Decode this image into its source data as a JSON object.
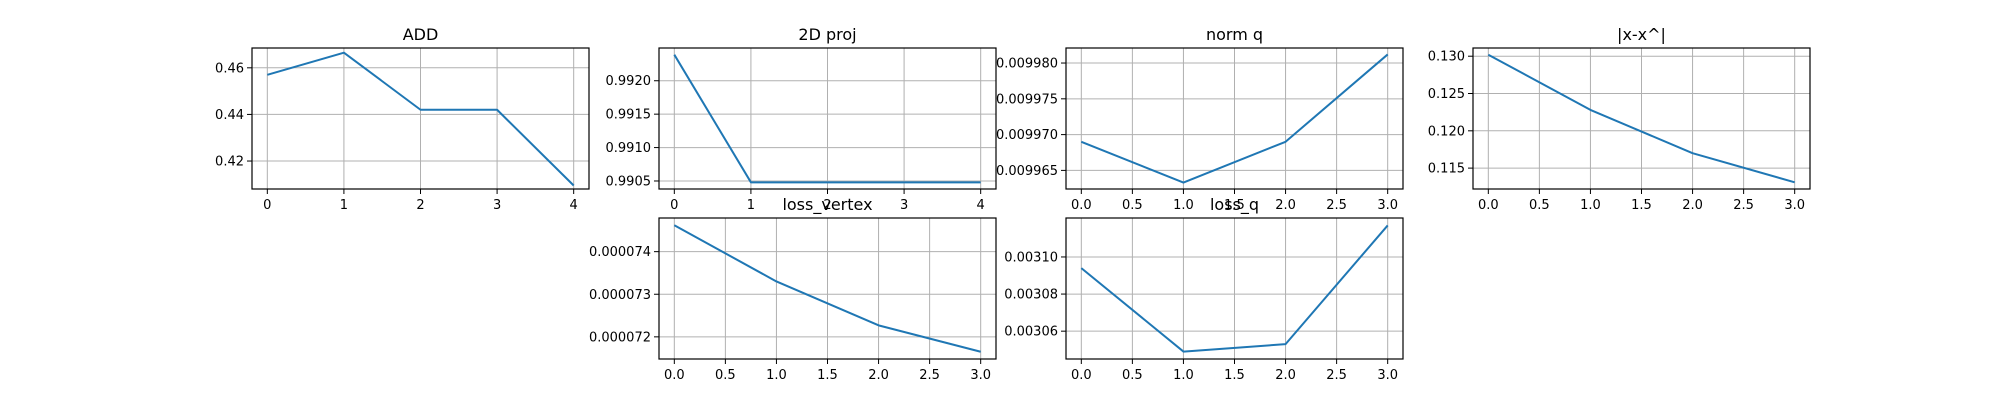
{
  "chart_data": [
    {
      "id": "add",
      "type": "line",
      "title": "ADD",
      "x": [
        0,
        1,
        2,
        3,
        4
      ],
      "series": [
        {
          "values": [
            0.457,
            0.4665,
            0.442,
            0.442,
            0.4095
          ]
        }
      ],
      "xlim": [
        -0.2,
        4.2
      ],
      "ylim": [
        0.408,
        0.4685
      ],
      "xticks": [
        0,
        1,
        2,
        3,
        4
      ],
      "xtick_labels": [
        "0",
        "1",
        "2",
        "3",
        "4"
      ],
      "yticks": [
        0.42,
        0.44,
        0.46
      ],
      "ytick_labels": [
        "0.42",
        "0.44",
        "0.46"
      ],
      "grid": true,
      "color": "#1f77b4"
    },
    {
      "id": "proj2d",
      "type": "line",
      "title": "2D proj",
      "x": [
        0,
        1,
        2,
        3,
        4
      ],
      "series": [
        {
          "values": [
            0.99239,
            0.99048,
            0.99048,
            0.99048,
            0.99048
          ]
        }
      ],
      "xlim": [
        -0.2,
        4.2
      ],
      "ylim": [
        0.99038,
        0.99249
      ],
      "xticks": [
        0,
        1,
        2,
        3,
        4
      ],
      "xtick_labels": [
        "0",
        "1",
        "2",
        "3",
        "4"
      ],
      "yticks": [
        0.9905,
        0.991,
        0.9915,
        0.992
      ],
      "ytick_labels": [
        "0.9905",
        "0.9910",
        "0.9915",
        "0.9920"
      ],
      "grid": true,
      "color": "#1f77b4"
    },
    {
      "id": "normq",
      "type": "line",
      "title": "norm q",
      "x": [
        0,
        1,
        2,
        3
      ],
      "series": [
        {
          "values": [
            0.009969,
            0.0099633,
            0.009969,
            0.0099812
          ]
        }
      ],
      "xlim": [
        -0.15,
        3.15
      ],
      "ylim": [
        0.0099624,
        0.0099821
      ],
      "xticks": [
        0,
        0.5,
        1,
        1.5,
        2,
        2.5,
        3
      ],
      "xtick_labels": [
        "0.0",
        "0.5",
        "1.0",
        "1.5",
        "2.0",
        "2.5",
        "3.0"
      ],
      "yticks": [
        0.009965,
        0.00997,
        0.009975,
        0.00998
      ],
      "ytick_labels": [
        "0.009965",
        "0.009970",
        "0.009975",
        "0.009980"
      ],
      "grid": true,
      "color": "#1f77b4"
    },
    {
      "id": "xdiff",
      "type": "line",
      "title": "|x-x^|",
      "x": [
        0,
        1,
        2,
        3
      ],
      "series": [
        {
          "values": [
            0.1302,
            0.1228,
            0.117,
            0.1131
          ]
        }
      ],
      "xlim": [
        -0.15,
        3.15
      ],
      "ylim": [
        0.1122,
        0.1311
      ],
      "xticks": [
        0,
        0.5,
        1,
        1.5,
        2,
        2.5,
        3
      ],
      "xtick_labels": [
        "0.0",
        "0.5",
        "1.0",
        "1.5",
        "2.0",
        "2.5",
        "3.0"
      ],
      "yticks": [
        0.115,
        0.12,
        0.125,
        0.13
      ],
      "ytick_labels": [
        "0.115",
        "0.120",
        "0.125",
        "0.130"
      ],
      "grid": true,
      "color": "#1f77b4"
    },
    {
      "id": "lossvertex",
      "type": "line",
      "title": "loss_vertex",
      "x": [
        0,
        1,
        2,
        3
      ],
      "series": [
        {
          "values": [
            7.462e-05,
            7.33e-05,
            7.227e-05,
            7.165e-05
          ]
        }
      ],
      "xlim": [
        -0.15,
        3.15
      ],
      "ylim": [
        7.148e-05,
        7.479e-05
      ],
      "xticks": [
        0,
        0.5,
        1,
        1.5,
        2,
        2.5,
        3
      ],
      "xtick_labels": [
        "0.0",
        "0.5",
        "1.0",
        "1.5",
        "2.0",
        "2.5",
        "3.0"
      ],
      "yticks": [
        7.2e-05,
        7.3e-05,
        7.4e-05
      ],
      "ytick_labels": [
        "0.000072",
        "0.000073",
        "0.000074"
      ],
      "grid": true,
      "color": "#1f77b4"
    },
    {
      "id": "lossq",
      "type": "line",
      "title": "loss_q",
      "x": [
        0,
        1,
        2,
        3
      ],
      "series": [
        {
          "values": [
            0.003094,
            0.003049,
            0.003053,
            0.003117
          ]
        }
      ],
      "xlim": [
        -0.15,
        3.15
      ],
      "ylim": [
        0.003045,
        0.003121
      ],
      "xticks": [
        0,
        0.5,
        1,
        1.5,
        2,
        2.5,
        3
      ],
      "xtick_labels": [
        "0.0",
        "0.5",
        "1.0",
        "1.5",
        "2.0",
        "2.5",
        "3.0"
      ],
      "yticks": [
        0.00306,
        0.00308,
        0.0031
      ],
      "ytick_labels": [
        "0.00306",
        "0.00308",
        "0.00310"
      ],
      "grid": true,
      "color": "#1f77b4"
    }
  ]
}
